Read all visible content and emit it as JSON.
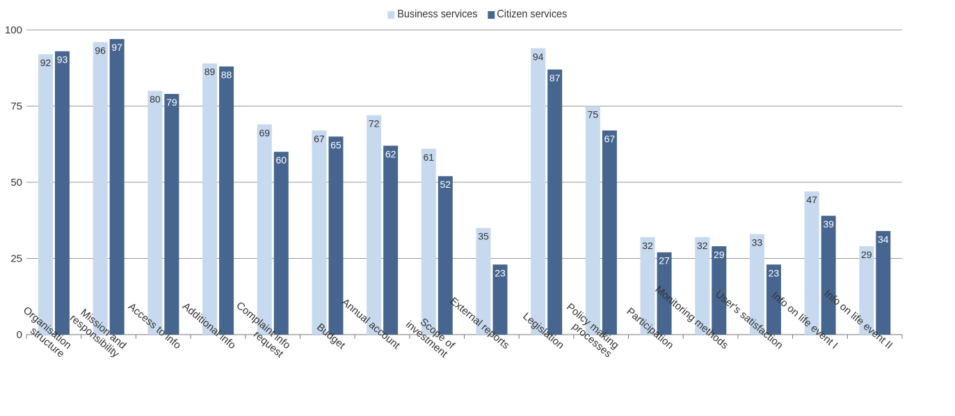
{
  "chart_data": {
    "type": "bar",
    "categories": [
      [
        "Organisation",
        "structure"
      ],
      [
        "Mission and",
        "responsibility"
      ],
      [
        "Access to info"
      ],
      [
        "Additional info"
      ],
      [
        "Complaint info",
        "request"
      ],
      [
        "Budget"
      ],
      [
        "Annual account"
      ],
      [
        "Scope of",
        "investment"
      ],
      [
        "External reports"
      ],
      [
        "Legislation"
      ],
      [
        "Policy making",
        "processes"
      ],
      [
        "Participation"
      ],
      [
        "Monitoring methods"
      ],
      [
        "User's satisfaction"
      ],
      [
        "Info on life event I"
      ],
      [
        "Info on life event II"
      ]
    ],
    "series": [
      {
        "name": "Business services",
        "color": "#c7d9ef",
        "values": [
          92,
          96,
          80,
          89,
          69,
          67,
          72,
          61,
          35,
          94,
          75,
          32,
          32,
          33,
          47,
          29
        ]
      },
      {
        "name": "Citizen services",
        "color": "#46658f",
        "values": [
          93,
          97,
          79,
          88,
          60,
          65,
          62,
          52,
          23,
          87,
          67,
          27,
          29,
          23,
          39,
          34
        ]
      }
    ],
    "ylim": [
      0,
      100
    ],
    "yticks": [
      0,
      25,
      50,
      75,
      100
    ],
    "grid": true,
    "legend_position": "top-center",
    "xlabel": "",
    "ylabel": ""
  }
}
